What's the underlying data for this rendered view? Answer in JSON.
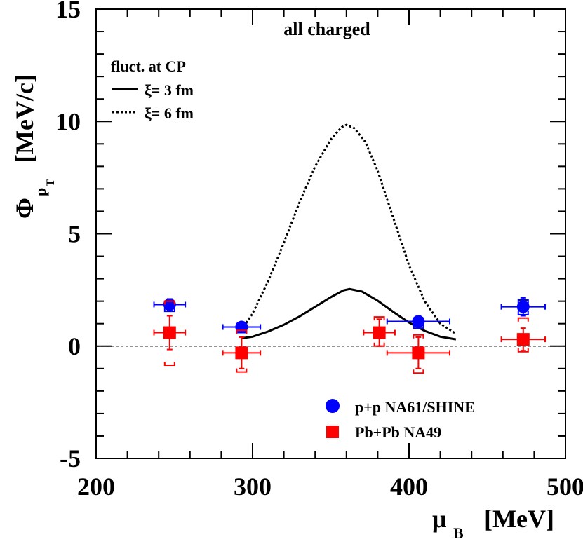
{
  "chart_data": {
    "type": "scatter",
    "title": "all charged",
    "xlabel": "μ",
    "xlabel_sub": "B",
    "xlabel_unit": "[MeV]",
    "ylabel": "Φ",
    "ylabel_sub": "p",
    "ylabel_subsub": "T",
    "ylabel_unit": "[MeV/c]",
    "xlim": [
      200,
      500
    ],
    "ylim": [
      -5,
      15
    ],
    "x_ticks": [
      "200",
      "300",
      "400",
      "500"
    ],
    "y_ticks": [
      "-5",
      "0",
      "5",
      "10",
      "15"
    ],
    "zero_line": true,
    "grid": false,
    "model_legend_title": "fluct. at CP",
    "model_curves": [
      {
        "name": "ξ= 3 fm",
        "style": "solid",
        "points": [
          [
            293,
            0.35
          ],
          [
            300,
            0.42
          ],
          [
            310,
            0.65
          ],
          [
            320,
            0.95
          ],
          [
            330,
            1.32
          ],
          [
            340,
            1.75
          ],
          [
            350,
            2.18
          ],
          [
            358,
            2.48
          ],
          [
            362,
            2.54
          ],
          [
            370,
            2.43
          ],
          [
            380,
            2.02
          ],
          [
            390,
            1.52
          ],
          [
            400,
            1.05
          ],
          [
            410,
            0.68
          ],
          [
            420,
            0.42
          ],
          [
            430,
            0.3
          ]
        ]
      },
      {
        "name": "ξ= 6 fm",
        "style": "dotted",
        "points": [
          [
            293,
            0.72
          ],
          [
            300,
            1.45
          ],
          [
            310,
            2.9
          ],
          [
            320,
            4.6
          ],
          [
            330,
            6.4
          ],
          [
            340,
            8.0
          ],
          [
            350,
            9.2
          ],
          [
            357,
            9.75
          ],
          [
            360,
            9.85
          ],
          [
            365,
            9.7
          ],
          [
            372,
            9.1
          ],
          [
            380,
            7.8
          ],
          [
            390,
            5.7
          ],
          [
            400,
            3.6
          ],
          [
            410,
            2.0
          ],
          [
            420,
            1.0
          ],
          [
            430,
            0.55
          ]
        ]
      }
    ],
    "series": [
      {
        "name": "p+p NA61/SHINE",
        "marker": "circle",
        "color": "#0000ff",
        "points": [
          {
            "x": 247,
            "y": 1.85,
            "xerr": 10,
            "yerr": 0.25,
            "sys": [
              1.55,
              2.0
            ]
          },
          {
            "x": 293,
            "y": 0.85,
            "xerr": 12,
            "yerr": 0.2,
            "sys": [
              0.6,
              1.0
            ]
          },
          {
            "x": 406,
            "y": 1.1,
            "xerr": 20,
            "yerr": 0.2,
            "sys": [
              0.8,
              1.25
            ]
          },
          {
            "x": 473,
            "y": 1.75,
            "xerr": 14,
            "yerr": 0.4,
            "sys": [
              1.4,
              2.05
            ]
          }
        ]
      },
      {
        "name": "Pb+Pb NA49",
        "marker": "square",
        "color": "#ff0000",
        "points": [
          {
            "x": 247,
            "y": 0.6,
            "xerr": 10,
            "yerr": 0.75,
            "sys": [
              -0.85,
              2.0
            ]
          },
          {
            "x": 293,
            "y": -0.3,
            "xerr": 12,
            "yerr": 0.7,
            "sys": [
              -1.15,
              0.7
            ]
          },
          {
            "x": 381,
            "y": 0.6,
            "xerr": 10,
            "yerr": 0.6,
            "sys": [
              0.0,
              1.3
            ]
          },
          {
            "x": 406,
            "y": -0.3,
            "xerr": 20,
            "yerr": 0.7,
            "sys": [
              -1.2,
              0.5
            ]
          },
          {
            "x": 473,
            "y": 0.3,
            "xerr": 14,
            "yerr": 0.5,
            "sys": [
              -0.25,
              1.25
            ]
          }
        ]
      }
    ]
  }
}
